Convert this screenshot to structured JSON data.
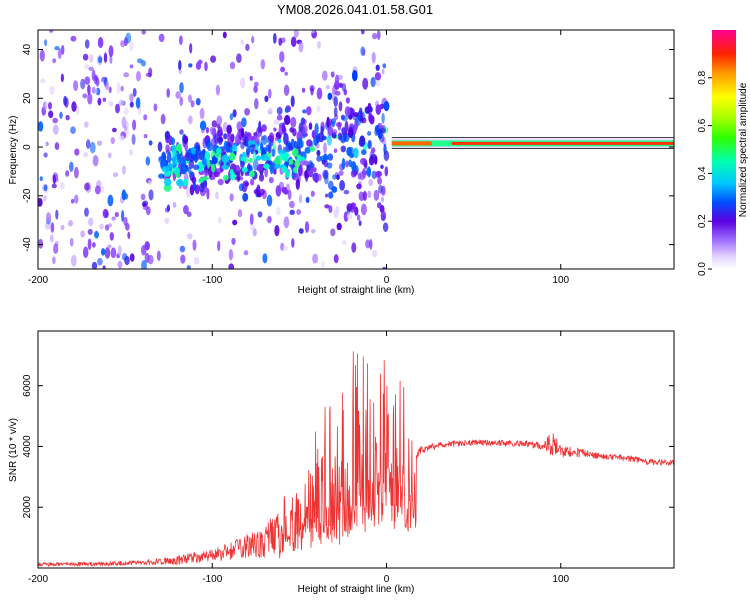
{
  "title": "YM08.2026.041.01.58.G01",
  "colors": {
    "snr_line": "#ee3333",
    "axis": "#000000",
    "background": "#ffffff"
  },
  "chart_data": [
    {
      "type": "heatmap",
      "xlabel": "Height of straight line (km)",
      "ylabel": "Frequency (Hz)",
      "xlim": [
        -200,
        165
      ],
      "ylim": [
        -50,
        48
      ],
      "xticks": [
        -200,
        -100,
        0,
        100
      ],
      "yticks": [
        -40,
        -20,
        0,
        20,
        40
      ],
      "colorbar": {
        "label": "Normalized spectral amplitude",
        "range": [
          0.0,
          1.0
        ],
        "ticks": [
          "0.0",
          "0.2",
          "0.4",
          "0.6",
          "0.8"
        ],
        "tick_values": [
          0.0,
          0.2,
          0.4,
          0.6,
          0.8
        ]
      },
      "features": [
        {
          "name": "noise-scatter",
          "x": [
            -200,
            0
          ],
          "freq": [
            -50,
            48
          ],
          "amplitude": 0.08
        },
        {
          "name": "scattered-echo",
          "x": [
            -130,
            0
          ],
          "freq": [
            -18,
            8
          ],
          "amplitude": 0.25
        },
        {
          "name": "carrier-line",
          "x": [
            3,
            165
          ],
          "freq": 1.5,
          "amplitude": 1.0
        }
      ]
    },
    {
      "type": "line",
      "xlabel": "Height of straight line (km)",
      "ylabel": "SNR (10 * v/v)",
      "xlim": [
        -200,
        165
      ],
      "ylim": [
        0,
        7800
      ],
      "xticks": [
        -200,
        -100,
        0,
        100
      ],
      "yticks": [
        2000,
        4000,
        6000
      ],
      "series": [
        {
          "name": "SNR",
          "x": [
            -200,
            -180,
            -160,
            -140,
            -120,
            -110,
            -100,
            -90,
            -80,
            -70,
            -60,
            -50,
            -40,
            -30,
            -20,
            -10,
            0,
            10,
            14,
            17,
            20,
            30,
            40,
            50,
            60,
            70,
            80,
            90,
            95,
            100,
            110,
            120,
            130,
            140,
            150,
            165
          ],
          "y": [
            120,
            120,
            140,
            180,
            250,
            350,
            400,
            550,
            700,
            900,
            1100,
            1350,
            1600,
            1900,
            2300,
            2900,
            3300,
            3000,
            2800,
            3700,
            3900,
            4050,
            4100,
            4120,
            4130,
            4100,
            4100,
            4000,
            4100,
            3850,
            3800,
            3700,
            3650,
            3600,
            3500,
            3450
          ],
          "noise_amplitude": [
            60,
            60,
            70,
            80,
            150,
            180,
            200,
            300,
            400,
            600,
            800,
            1200,
            1500,
            1900,
            2500,
            2600,
            2500,
            2400,
            2300,
            150,
            120,
            100,
            100,
            100,
            100,
            100,
            100,
            150,
            400,
            200,
            150,
            100,
            100,
            100,
            100,
            100
          ]
        }
      ]
    }
  ]
}
